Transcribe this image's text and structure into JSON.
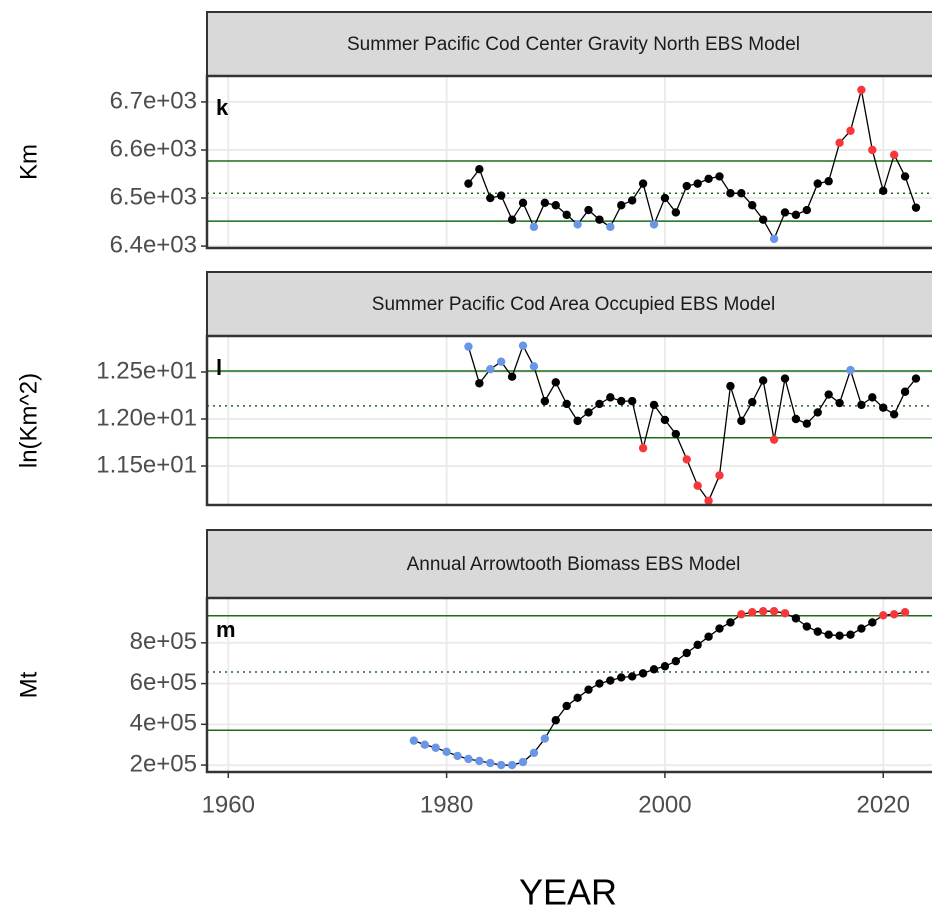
{
  "chart_data": [
    {
      "type": "line",
      "title": "Summer Pacific Cod Center Gravity North EBS Model",
      "tag": "k",
      "ylabel": "Km",
      "x": [
        1982,
        1983,
        1984,
        1985,
        1986,
        1987,
        1988,
        1989,
        1990,
        1991,
        1992,
        1993,
        1994,
        1995,
        1996,
        1997,
        1998,
        1999,
        2000,
        2001,
        2002,
        2003,
        2004,
        2005,
        2006,
        2007,
        2008,
        2009,
        2010,
        2011,
        2012,
        2013,
        2014,
        2015,
        2016,
        2017,
        2018,
        2019,
        2020,
        2021,
        2022,
        2023
      ],
      "values": [
        6530,
        6560,
        6500,
        6505,
        6455,
        6490,
        6440,
        6490,
        6485,
        6465,
        6445,
        6475,
        6455,
        6440,
        6485,
        6495,
        6530,
        6445,
        6500,
        6470,
        6525,
        6530,
        6540,
        6545,
        6510,
        6510,
        6485,
        6455,
        6415,
        6470,
        6465,
        6475,
        6530,
        6535,
        6615,
        6640,
        6725,
        6600,
        6515,
        6590,
        6545,
        6480
      ],
      "color": "#000000",
      "above_color": "#f8373b",
      "below_color": "#6a96e8",
      "reference_color": "#1a6e1a",
      "reference_lines": {
        "upper": 6577,
        "mean": 6510,
        "lower": 6452
      },
      "xlim": [
        1958.05,
        2025.2
      ],
      "ylim": [
        6396,
        6754
      ],
      "yticks": [
        {
          "value": 6400,
          "label": "6.4e+03"
        },
        {
          "value": 6500,
          "label": "6.5e+03"
        },
        {
          "value": 6600,
          "label": "6.6e+03"
        },
        {
          "value": 6700,
          "label": "6.7e+03"
        }
      ],
      "grid": true
    },
    {
      "type": "line",
      "title": "Summer Pacific Cod Area Occupied EBS Model",
      "tag": "l",
      "ylabel": "ln(Km^2)",
      "x": [
        1982,
        1983,
        1984,
        1985,
        1986,
        1987,
        1988,
        1989,
        1990,
        1991,
        1992,
        1993,
        1994,
        1995,
        1996,
        1997,
        1998,
        1999,
        2000,
        2001,
        2002,
        2003,
        2004,
        2005,
        2006,
        2007,
        2008,
        2009,
        2010,
        2011,
        2012,
        2013,
        2014,
        2015,
        2016,
        2017,
        2018,
        2019,
        2020,
        2021,
        2022,
        2023
      ],
      "values": [
        12.77,
        12.38,
        12.53,
        12.61,
        12.45,
        12.78,
        12.56,
        12.19,
        12.39,
        12.16,
        11.98,
        12.07,
        12.16,
        12.23,
        12.19,
        12.19,
        11.69,
        12.15,
        11.99,
        11.84,
        11.57,
        11.29,
        11.13,
        11.4,
        12.35,
        11.98,
        12.18,
        12.41,
        11.78,
        12.43,
        12.0,
        11.95,
        12.07,
        12.26,
        12.17,
        12.52,
        12.15,
        12.23,
        12.12,
        12.05,
        12.29,
        12.43
      ],
      "color": "#000000",
      "above_color": "#6a96e8",
      "below_color": "#f8373b",
      "reference_color": "#1a6e1a",
      "reference_lines": {
        "upper": 12.51,
        "mean": 12.14,
        "lower": 11.8
      },
      "xlim": [
        1958.05,
        2025.2
      ],
      "ylim": [
        11.085,
        12.883
      ],
      "yticks": [
        {
          "value": 11.5,
          "label": "1.15e+01"
        },
        {
          "value": 12.0,
          "label": "1.20e+01"
        },
        {
          "value": 12.5,
          "label": "1.25e+01"
        }
      ],
      "grid": true
    },
    {
      "type": "line",
      "title": "Annual Arrowtooth Biomass EBS Model",
      "tag": "m",
      "ylabel": "Mt",
      "xlabel": "YEAR",
      "x": [
        1977,
        1978,
        1979,
        1980,
        1981,
        1982,
        1983,
        1984,
        1985,
        1986,
        1987,
        1988,
        1989,
        1990,
        1991,
        1992,
        1993,
        1994,
        1995,
        1996,
        1997,
        1998,
        1999,
        2000,
        2001,
        2002,
        2003,
        2004,
        2005,
        2006,
        2007,
        2008,
        2009,
        2010,
        2011,
        2012,
        2013,
        2014,
        2015,
        2016,
        2017,
        2018,
        2019,
        2020,
        2021,
        2022
      ],
      "values": [
        320000,
        300000,
        285000,
        265000,
        245000,
        230000,
        220000,
        210000,
        200000,
        200000,
        215000,
        260000,
        330000,
        420000,
        490000,
        530000,
        570000,
        600000,
        615000,
        630000,
        635000,
        650000,
        670000,
        685000,
        710000,
        750000,
        790000,
        830000,
        870000,
        900000,
        940000,
        950000,
        955000,
        955000,
        945000,
        920000,
        880000,
        855000,
        840000,
        835000,
        840000,
        870000,
        900000,
        935000,
        940000,
        950000
      ],
      "color": "#000000",
      "above_color": "#f8373b",
      "below_color": "#6a96e8",
      "reference_color": "#1a6e1a",
      "reference_lines": {
        "upper": 933000,
        "mean": 657000,
        "lower": 371000
      },
      "xlim": [
        1958.05,
        2025.2
      ],
      "ylim": [
        166000,
        1020000
      ],
      "xticks": [
        1960,
        1980,
        2000,
        2020
      ],
      "yticks": [
        {
          "value": 200000,
          "label": "2e+05"
        },
        {
          "value": 400000,
          "label": "4e+05"
        },
        {
          "value": 600000,
          "label": "6e+05"
        },
        {
          "value": 800000,
          "label": "8e+05"
        }
      ],
      "grid": true
    }
  ]
}
